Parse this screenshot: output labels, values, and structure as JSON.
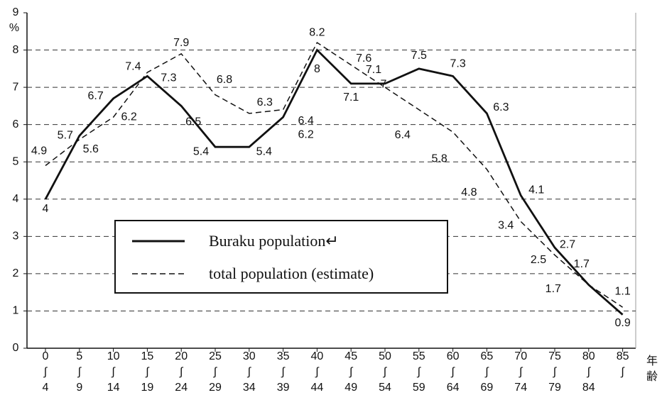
{
  "chart_data": {
    "type": "line",
    "y_label": "%",
    "x_label": "年齢",
    "categories": [
      [
        "0",
        "∫",
        "4"
      ],
      [
        "5",
        "∫",
        "9"
      ],
      [
        "10",
        "∫",
        "14"
      ],
      [
        "15",
        "∫",
        "19"
      ],
      [
        "20",
        "∫",
        "24"
      ],
      [
        "25",
        "∫",
        "29"
      ],
      [
        "30",
        "∫",
        "34"
      ],
      [
        "35",
        "∫",
        "39"
      ],
      [
        "40",
        "∫",
        "44"
      ],
      [
        "45",
        "∫",
        "49"
      ],
      [
        "50",
        "∫",
        "54"
      ],
      [
        "55",
        "∫",
        "59"
      ],
      [
        "60",
        "∫",
        "64"
      ],
      [
        "65",
        "∫",
        "69"
      ],
      [
        "70",
        "∫",
        "74"
      ],
      [
        "75",
        "∫",
        "79"
      ],
      [
        "80",
        "∫",
        "84"
      ],
      [
        "85",
        "∫"
      ]
    ],
    "series": [
      {
        "name": "Buraku population↵",
        "color": "#111111",
        "dash": false,
        "values": [
          4,
          5.7,
          6.7,
          7.3,
          6.5,
          5.4,
          5.4,
          6.2,
          8,
          7.1,
          7.1,
          7.5,
          7.3,
          6.3,
          4.1,
          2.7,
          1.7,
          0.9
        ]
      },
      {
        "name": "total population (estimate)",
        "color": "#111111",
        "dash": true,
        "values": [
          4.9,
          5.6,
          6.2,
          7.4,
          7.9,
          6.8,
          6.3,
          6.4,
          8.2,
          7.6,
          7,
          6.4,
          5.8,
          4.8,
          3.4,
          2.5,
          1.7,
          1.1
        ]
      }
    ],
    "ylim": [
      0,
      9
    ],
    "yticks": [
      0,
      1,
      2,
      3,
      4,
      5,
      6,
      7,
      8,
      9
    ],
    "grid": true
  }
}
